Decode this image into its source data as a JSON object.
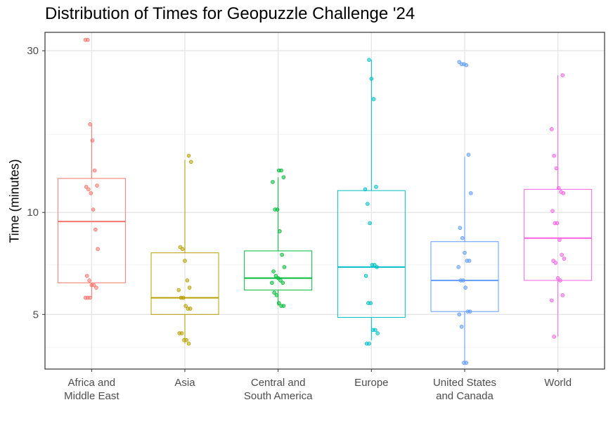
{
  "chart_data": {
    "type": "boxplot",
    "title": "Distribution of Times for Geopuzzle Challenge '24",
    "xlabel": "",
    "ylabel": "Time (minutes)",
    "y_scale": "log",
    "ylim": [
      3.45,
      34
    ],
    "y_ticks": [
      5,
      10,
      30
    ],
    "y_minor_ticks": [
      4,
      7,
      17
    ],
    "grid": true,
    "categories": [
      {
        "lines": [
          "Africa and",
          "Middle East"
        ],
        "color": "#F8766D",
        "box": {
          "q1": 6.2,
          "median": 9.4,
          "q3": 12.6,
          "whisker_low": 5.6,
          "whisker_high": 18.2
        },
        "points": [
          32.3,
          32.3,
          18.2,
          16.3,
          13.3,
          12.0,
          11.9,
          11.7,
          11.4,
          10.2,
          8.9,
          7.8,
          6.5,
          6.3,
          6.1,
          6.1,
          6.0,
          5.6,
          5.6,
          5.6
        ]
      },
      {
        "lines": [
          "Asia"
        ],
        "color": "#B79F00",
        "box": {
          "q1": 5.0,
          "median": 5.6,
          "q3": 7.6,
          "whisker_low": 4.1,
          "whisker_high": 14.3
        },
        "points": [
          14.7,
          14.1,
          7.9,
          7.8,
          7.2,
          6.3,
          6.0,
          5.9,
          5.6,
          5.6,
          5.3,
          5.2,
          5.2,
          4.4,
          4.4,
          4.2,
          4.2,
          4.1
        ]
      },
      {
        "lines": [
          "Central and",
          "South America"
        ],
        "color": "#00BA38",
        "box": {
          "q1": 5.9,
          "median": 6.4,
          "q3": 7.7,
          "whisker_low": 5.3,
          "whisker_high": 12.7
        },
        "points": [
          13.3,
          13.3,
          12.7,
          12.3,
          10.2,
          10.2,
          8.8,
          7.5,
          6.9,
          6.7,
          6.5,
          6.4,
          6.3,
          6.2,
          6.2,
          5.8,
          5.7,
          5.4,
          5.3,
          5.3
        ]
      },
      {
        "lines": [
          "Europe"
        ],
        "color": "#00BFC4",
        "box": {
          "q1": 4.9,
          "median": 6.9,
          "q3": 11.6,
          "whisker_low": 4.2,
          "whisker_high": 28.2
        },
        "points": [
          28.2,
          24.8,
          21.6,
          11.9,
          11.7,
          10.6,
          9.3,
          7.0,
          7.0,
          6.9,
          6.5,
          5.4,
          5.4,
          4.5,
          4.5,
          4.4,
          4.1,
          4.1
        ]
      },
      {
        "lines": [
          "United States",
          "and Canada"
        ],
        "color": "#619CFF",
        "box": {
          "q1": 5.1,
          "median": 6.3,
          "q3": 8.2,
          "whisker_low": 3.6,
          "whisker_high": 14.6
        },
        "points": [
          27.8,
          27.4,
          27.4,
          27.2,
          14.8,
          11.4,
          9.0,
          8.4,
          7.6,
          7.2,
          7.2,
          6.9,
          6.3,
          6.3,
          6.0,
          5.1,
          5.1,
          5.0,
          4.6,
          3.6,
          3.6
        ]
      },
      {
        "lines": [
          "World"
        ],
        "color": "#F564E3",
        "box": {
          "q1": 6.3,
          "median": 8.4,
          "q3": 11.7,
          "whisker_low": 4.3,
          "whisker_high": 25.4
        },
        "points": [
          25.4,
          17.6,
          14.7,
          13.5,
          11.8,
          11.5,
          11.4,
          10.1,
          9.3,
          9.3,
          8.3,
          7.5,
          7.3,
          7.2,
          7.1,
          6.4,
          6.3,
          5.7,
          5.5,
          4.3
        ]
      }
    ]
  }
}
